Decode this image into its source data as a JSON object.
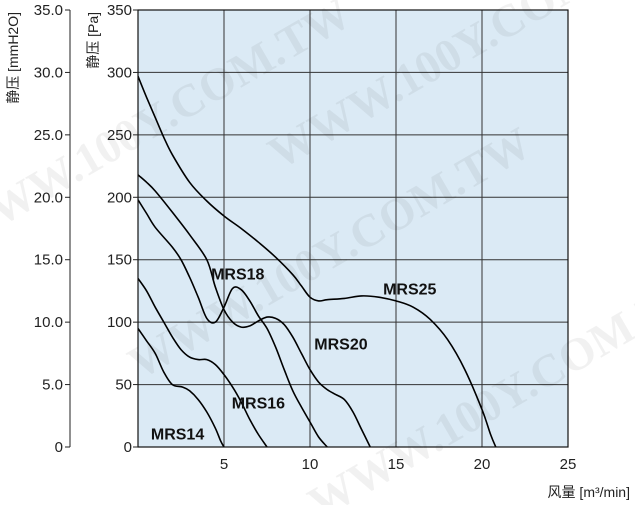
{
  "chart_data": {
    "type": "line",
    "watermark": "WWW.100Y.COM.TW",
    "left_axis": {
      "title": "静压 [mmH2O]",
      "ticks": [
        {
          "value": 0,
          "label": "0"
        },
        {
          "value": 5,
          "label": "5.0"
        },
        {
          "value": 10,
          "label": "10.0"
        },
        {
          "value": 15,
          "label": "15.0"
        },
        {
          "value": 20,
          "label": "20.0"
        },
        {
          "value": 25,
          "label": "25.0"
        },
        {
          "value": 30,
          "label": "30.0"
        },
        {
          "value": 35,
          "label": "35.0"
        }
      ]
    },
    "y_axis": {
      "title": "静压 [Pa]",
      "range": [
        0,
        350
      ],
      "ticks": [
        {
          "value": 0,
          "label": "0"
        },
        {
          "value": 50,
          "label": "50"
        },
        {
          "value": 100,
          "label": "100"
        },
        {
          "value": 150,
          "label": "150"
        },
        {
          "value": 200,
          "label": "200"
        },
        {
          "value": 250,
          "label": "250"
        },
        {
          "value": 300,
          "label": "300"
        },
        {
          "value": 350,
          "label": "350"
        }
      ]
    },
    "x_axis": {
      "title": "风量 [m³/min]",
      "range": [
        0,
        25
      ],
      "ticks": [
        {
          "value": 5,
          "label": "5"
        },
        {
          "value": 10,
          "label": "10"
        },
        {
          "value": 15,
          "label": "15"
        },
        {
          "value": 20,
          "label": "20"
        },
        {
          "value": 25,
          "label": "25"
        }
      ]
    },
    "grid": true,
    "background_color": "#dbeaf5",
    "line_color": "#000000",
    "series": [
      {
        "name": "MRS14",
        "label_at": [
          2.3,
          6
        ],
        "points": [
          [
            0,
            95
          ],
          [
            0.5,
            85
          ],
          [
            1,
            75
          ],
          [
            1.5,
            60
          ],
          [
            2,
            50
          ],
          [
            2.6,
            48
          ],
          [
            3,
            45
          ],
          [
            3.5,
            38
          ],
          [
            4,
            28
          ],
          [
            4.5,
            15
          ],
          [
            4.8,
            5
          ],
          [
            5,
            0
          ]
        ]
      },
      {
        "name": "MRS16",
        "label_at": [
          7,
          31
        ],
        "points": [
          [
            0,
            135
          ],
          [
            0.5,
            125
          ],
          [
            1,
            112
          ],
          [
            1.5,
            100
          ],
          [
            2,
            88
          ],
          [
            2.5,
            78
          ],
          [
            3,
            72
          ],
          [
            3.5,
            70
          ],
          [
            4,
            70
          ],
          [
            4.5,
            66
          ],
          [
            5,
            58
          ],
          [
            5.5,
            48
          ],
          [
            6,
            36
          ],
          [
            6.5,
            22
          ],
          [
            7,
            10
          ],
          [
            7.5,
            0
          ]
        ]
      },
      {
        "name": "MRS18",
        "label_at": [
          5.8,
          134
        ],
        "points": [
          [
            0,
            198
          ],
          [
            0.5,
            187
          ],
          [
            1,
            176
          ],
          [
            2,
            160
          ],
          [
            2.5,
            150
          ],
          [
            3,
            136
          ],
          [
            3.5,
            120
          ],
          [
            4,
            103
          ],
          [
            4.5,
            100
          ],
          [
            5,
            112
          ],
          [
            5.5,
            127
          ],
          [
            6,
            126
          ],
          [
            6.5,
            117
          ],
          [
            7,
            105
          ],
          [
            7.5,
            95
          ],
          [
            8,
            80
          ],
          [
            8.5,
            62
          ],
          [
            9,
            45
          ],
          [
            9.5,
            32
          ],
          [
            10,
            20
          ],
          [
            10.5,
            8
          ],
          [
            11,
            0
          ]
        ]
      },
      {
        "name": "MRS20",
        "label_at": [
          11.8,
          78
        ],
        "points": [
          [
            0,
            218
          ],
          [
            0.5,
            212
          ],
          [
            1,
            205
          ],
          [
            2,
            188
          ],
          [
            3,
            170
          ],
          [
            4,
            150
          ],
          [
            4.5,
            128
          ],
          [
            5,
            110
          ],
          [
            5.5,
            100
          ],
          [
            6,
            96
          ],
          [
            6.5,
            97
          ],
          [
            7,
            101
          ],
          [
            7.5,
            104
          ],
          [
            8,
            103
          ],
          [
            8.5,
            98
          ],
          [
            9,
            88
          ],
          [
            9.5,
            75
          ],
          [
            10,
            62
          ],
          [
            10.5,
            52
          ],
          [
            11,
            46
          ],
          [
            11.5,
            42
          ],
          [
            12,
            38
          ],
          [
            12.5,
            28
          ],
          [
            13,
            14
          ],
          [
            13.5,
            0
          ]
        ]
      },
      {
        "name": "MRS25",
        "label_at": [
          15.8,
          122
        ],
        "points": [
          [
            0,
            297
          ],
          [
            0.5,
            280
          ],
          [
            1,
            264
          ],
          [
            1.5,
            248
          ],
          [
            2,
            234
          ],
          [
            3,
            212
          ],
          [
            4,
            197
          ],
          [
            5,
            185
          ],
          [
            6,
            175
          ],
          [
            7,
            164
          ],
          [
            8,
            152
          ],
          [
            9,
            138
          ],
          [
            9.5,
            129
          ],
          [
            10,
            120
          ],
          [
            10.5,
            117
          ],
          [
            11,
            118
          ],
          [
            12,
            119
          ],
          [
            13,
            121
          ],
          [
            14,
            120
          ],
          [
            15,
            117
          ],
          [
            16,
            112
          ],
          [
            17,
            102
          ],
          [
            18,
            86
          ],
          [
            19,
            62
          ],
          [
            20,
            30
          ],
          [
            20.5,
            10
          ],
          [
            20.8,
            0
          ]
        ]
      }
    ]
  }
}
